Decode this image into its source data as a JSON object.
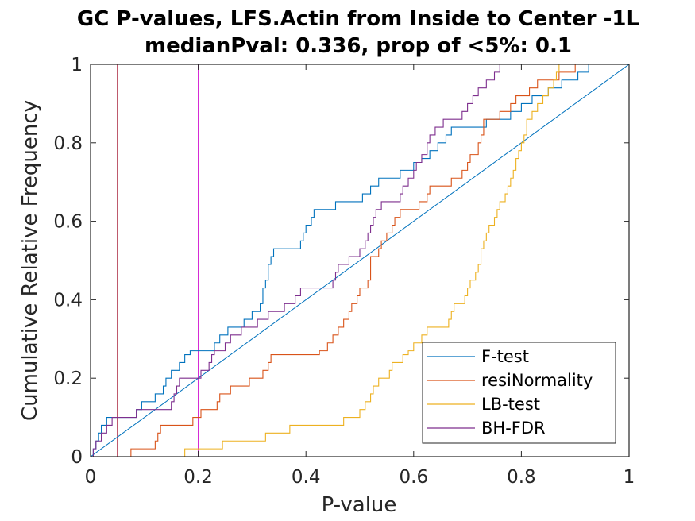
{
  "chart_data": {
    "type": "line",
    "title": "GC P-values, LFS.Actin from Inside to Center -1L",
    "subtitle": "medianPval: 0.336, prop of <5%: 0.1",
    "xlabel": "P-value",
    "ylabel": "Cumulative Relative Frequency",
    "xlim": [
      0,
      1
    ],
    "ylim": [
      0,
      1
    ],
    "xticks": [
      0,
      0.2,
      0.4,
      0.6,
      0.8,
      1
    ],
    "xtick_labels": [
      "0",
      "0.2",
      "0.4",
      "0.6",
      "0.8",
      "1"
    ],
    "yticks": [
      0,
      0.2,
      0.4,
      0.6,
      0.8,
      1
    ],
    "ytick_labels": [
      "0",
      "0.2",
      "0.4",
      "0.6",
      "0.8",
      "1"
    ],
    "grid": false,
    "legend_position": "bottom-right",
    "vertical_lines": [
      {
        "x": 0.05,
        "color": "#A2142F"
      },
      {
        "x": 0.2,
        "color": "#D52BD5"
      }
    ],
    "reference_line": {
      "from": [
        0,
        0
      ],
      "to": [
        1,
        1
      ],
      "color": "#0072BD"
    },
    "series": [
      {
        "name": "F-test",
        "color": "#0072BD",
        "step": true,
        "points": [
          [
            0,
            0
          ],
          [
            0.005,
            0.02
          ],
          [
            0.01,
            0.04
          ],
          [
            0.015,
            0.06
          ],
          [
            0.02,
            0.08
          ],
          [
            0.03,
            0.1
          ],
          [
            0.08,
            0.1
          ],
          [
            0.085,
            0.12
          ],
          [
            0.095,
            0.14
          ],
          [
            0.12,
            0.16
          ],
          [
            0.135,
            0.18
          ],
          [
            0.14,
            0.2
          ],
          [
            0.15,
            0.22
          ],
          [
            0.165,
            0.24
          ],
          [
            0.175,
            0.26
          ],
          [
            0.185,
            0.27
          ],
          [
            0.225,
            0.27
          ],
          [
            0.23,
            0.29
          ],
          [
            0.24,
            0.31
          ],
          [
            0.25,
            0.31
          ],
          [
            0.255,
            0.33
          ],
          [
            0.27,
            0.33
          ],
          [
            0.285,
            0.35
          ],
          [
            0.3,
            0.37
          ],
          [
            0.315,
            0.39
          ],
          [
            0.32,
            0.43
          ],
          [
            0.325,
            0.45
          ],
          [
            0.33,
            0.49
          ],
          [
            0.335,
            0.51
          ],
          [
            0.34,
            0.53
          ],
          [
            0.385,
            0.53
          ],
          [
            0.39,
            0.55
          ],
          [
            0.395,
            0.57
          ],
          [
            0.4,
            0.59
          ],
          [
            0.41,
            0.61
          ],
          [
            0.415,
            0.63
          ],
          [
            0.45,
            0.63
          ],
          [
            0.455,
            0.65
          ],
          [
            0.5,
            0.65
          ],
          [
            0.505,
            0.67
          ],
          [
            0.52,
            0.69
          ],
          [
            0.535,
            0.71
          ],
          [
            0.57,
            0.71
          ],
          [
            0.575,
            0.73
          ],
          [
            0.6,
            0.75
          ],
          [
            0.615,
            0.76
          ],
          [
            0.63,
            0.78
          ],
          [
            0.645,
            0.8
          ],
          [
            0.66,
            0.82
          ],
          [
            0.67,
            0.84
          ],
          [
            0.725,
            0.84
          ],
          [
            0.735,
            0.86
          ],
          [
            0.77,
            0.86
          ],
          [
            0.78,
            0.88
          ],
          [
            0.795,
            0.88
          ],
          [
            0.8,
            0.9
          ],
          [
            0.8,
            0.9
          ],
          [
            0.815,
            0.9
          ],
          [
            0.82,
            0.92
          ],
          [
            0.84,
            0.92
          ],
          [
            0.85,
            0.94
          ],
          [
            0.865,
            0.94
          ],
          [
            0.875,
            0.96
          ],
          [
            0.9,
            0.96
          ],
          [
            0.905,
            0.98
          ],
          [
            0.92,
            0.98
          ],
          [
            0.925,
            1.0
          ],
          [
            1.0,
            1.0
          ]
        ]
      },
      {
        "name": "resiNormality",
        "color": "#D95319",
        "step": true,
        "points": [
          [
            0,
            0
          ],
          [
            0.07,
            0.0
          ],
          [
            0.075,
            0.02
          ],
          [
            0.115,
            0.02
          ],
          [
            0.12,
            0.04
          ],
          [
            0.125,
            0.06
          ],
          [
            0.13,
            0.08
          ],
          [
            0.185,
            0.08
          ],
          [
            0.19,
            0.1
          ],
          [
            0.2,
            0.1
          ],
          [
            0.205,
            0.12
          ],
          [
            0.23,
            0.12
          ],
          [
            0.235,
            0.14
          ],
          [
            0.24,
            0.16
          ],
          [
            0.255,
            0.16
          ],
          [
            0.26,
            0.18
          ],
          [
            0.29,
            0.18
          ],
          [
            0.295,
            0.2
          ],
          [
            0.3,
            0.2
          ],
          [
            0.32,
            0.22
          ],
          [
            0.33,
            0.24
          ],
          [
            0.335,
            0.26
          ],
          [
            0.42,
            0.26
          ],
          [
            0.425,
            0.27
          ],
          [
            0.43,
            0.27
          ],
          [
            0.44,
            0.29
          ],
          [
            0.45,
            0.31
          ],
          [
            0.46,
            0.33
          ],
          [
            0.47,
            0.35
          ],
          [
            0.48,
            0.37
          ],
          [
            0.485,
            0.39
          ],
          [
            0.495,
            0.41
          ],
          [
            0.5,
            0.43
          ],
          [
            0.515,
            0.45
          ],
          [
            0.52,
            0.51
          ],
          [
            0.535,
            0.53
          ],
          [
            0.54,
            0.55
          ],
          [
            0.55,
            0.57
          ],
          [
            0.56,
            0.59
          ],
          [
            0.565,
            0.61
          ],
          [
            0.575,
            0.63
          ],
          [
            0.6,
            0.63
          ],
          [
            0.61,
            0.65
          ],
          [
            0.625,
            0.67
          ],
          [
            0.63,
            0.69
          ],
          [
            0.655,
            0.69
          ],
          [
            0.67,
            0.71
          ],
          [
            0.69,
            0.73
          ],
          [
            0.7,
            0.75
          ],
          [
            0.705,
            0.77
          ],
          [
            0.72,
            0.8
          ],
          [
            0.725,
            0.82
          ],
          [
            0.73,
            0.86
          ],
          [
            0.755,
            0.86
          ],
          [
            0.76,
            0.88
          ],
          [
            0.775,
            0.88
          ],
          [
            0.78,
            0.9
          ],
          [
            0.79,
            0.92
          ],
          [
            0.81,
            0.92
          ],
          [
            0.815,
            0.94
          ],
          [
            0.83,
            0.96
          ],
          [
            0.85,
            0.96
          ],
          [
            0.87,
            0.98
          ],
          [
            0.89,
            0.98
          ],
          [
            0.9,
            1.0
          ],
          [
            1.0,
            1.0
          ]
        ]
      },
      {
        "name": "LB-test",
        "color": "#EDB120",
        "step": true,
        "points": [
          [
            0,
            0
          ],
          [
            0.17,
            0.0
          ],
          [
            0.175,
            0.02
          ],
          [
            0.24,
            0.02
          ],
          [
            0.245,
            0.04
          ],
          [
            0.32,
            0.04
          ],
          [
            0.325,
            0.06
          ],
          [
            0.36,
            0.06
          ],
          [
            0.37,
            0.08
          ],
          [
            0.46,
            0.08
          ],
          [
            0.47,
            0.1
          ],
          [
            0.5,
            0.12
          ],
          [
            0.51,
            0.14
          ],
          [
            0.52,
            0.16
          ],
          [
            0.525,
            0.18
          ],
          [
            0.535,
            0.2
          ],
          [
            0.555,
            0.22
          ],
          [
            0.56,
            0.24
          ],
          [
            0.58,
            0.26
          ],
          [
            0.59,
            0.27
          ],
          [
            0.6,
            0.29
          ],
          [
            0.615,
            0.31
          ],
          [
            0.625,
            0.33
          ],
          [
            0.66,
            0.33
          ],
          [
            0.665,
            0.35
          ],
          [
            0.67,
            0.37
          ],
          [
            0.675,
            0.39
          ],
          [
            0.695,
            0.41
          ],
          [
            0.7,
            0.43
          ],
          [
            0.705,
            0.45
          ],
          [
            0.715,
            0.47
          ],
          [
            0.72,
            0.49
          ],
          [
            0.725,
            0.53
          ],
          [
            0.73,
            0.55
          ],
          [
            0.735,
            0.57
          ],
          [
            0.74,
            0.59
          ],
          [
            0.75,
            0.61
          ],
          [
            0.755,
            0.63
          ],
          [
            0.76,
            0.65
          ],
          [
            0.77,
            0.67
          ],
          [
            0.775,
            0.69
          ],
          [
            0.78,
            0.71
          ],
          [
            0.785,
            0.73
          ],
          [
            0.79,
            0.76
          ],
          [
            0.795,
            0.78
          ],
          [
            0.8,
            0.8
          ],
          [
            0.805,
            0.82
          ],
          [
            0.81,
            0.86
          ],
          [
            0.82,
            0.88
          ],
          [
            0.83,
            0.9
          ],
          [
            0.84,
            0.92
          ],
          [
            0.85,
            0.94
          ],
          [
            0.86,
            0.96
          ],
          [
            0.865,
            0.98
          ],
          [
            0.87,
            1.0
          ],
          [
            1.0,
            1.0
          ]
        ]
      },
      {
        "name": "BH-FDR",
        "color": "#7E2F8E",
        "step": true,
        "points": [
          [
            0,
            0
          ],
          [
            0.005,
            0.02
          ],
          [
            0.01,
            0.04
          ],
          [
            0.02,
            0.06
          ],
          [
            0.03,
            0.08
          ],
          [
            0.04,
            0.1
          ],
          [
            0.08,
            0.1
          ],
          [
            0.085,
            0.12
          ],
          [
            0.14,
            0.12
          ],
          [
            0.15,
            0.14
          ],
          [
            0.155,
            0.16
          ],
          [
            0.16,
            0.18
          ],
          [
            0.165,
            0.2
          ],
          [
            0.2,
            0.2
          ],
          [
            0.205,
            0.22
          ],
          [
            0.22,
            0.24
          ],
          [
            0.225,
            0.26
          ],
          [
            0.23,
            0.27
          ],
          [
            0.245,
            0.27
          ],
          [
            0.25,
            0.29
          ],
          [
            0.26,
            0.31
          ],
          [
            0.28,
            0.33
          ],
          [
            0.3,
            0.33
          ],
          [
            0.31,
            0.35
          ],
          [
            0.33,
            0.37
          ],
          [
            0.35,
            0.37
          ],
          [
            0.36,
            0.39
          ],
          [
            0.38,
            0.41
          ],
          [
            0.39,
            0.43
          ],
          [
            0.44,
            0.43
          ],
          [
            0.45,
            0.45
          ],
          [
            0.455,
            0.47
          ],
          [
            0.46,
            0.49
          ],
          [
            0.48,
            0.51
          ],
          [
            0.5,
            0.53
          ],
          [
            0.51,
            0.55
          ],
          [
            0.515,
            0.57
          ],
          [
            0.52,
            0.59
          ],
          [
            0.525,
            0.61
          ],
          [
            0.53,
            0.63
          ],
          [
            0.54,
            0.65
          ],
          [
            0.565,
            0.65
          ],
          [
            0.575,
            0.67
          ],
          [
            0.58,
            0.69
          ],
          [
            0.59,
            0.71
          ],
          [
            0.6,
            0.73
          ],
          [
            0.605,
            0.75
          ],
          [
            0.615,
            0.77
          ],
          [
            0.625,
            0.8
          ],
          [
            0.63,
            0.82
          ],
          [
            0.64,
            0.84
          ],
          [
            0.65,
            0.84
          ],
          [
            0.655,
            0.86
          ],
          [
            0.67,
            0.86
          ],
          [
            0.69,
            0.88
          ],
          [
            0.7,
            0.9
          ],
          [
            0.71,
            0.92
          ],
          [
            0.72,
            0.94
          ],
          [
            0.735,
            0.96
          ],
          [
            0.75,
            0.98
          ],
          [
            0.76,
            1.0
          ],
          [
            1.0,
            1.0
          ]
        ]
      }
    ]
  }
}
